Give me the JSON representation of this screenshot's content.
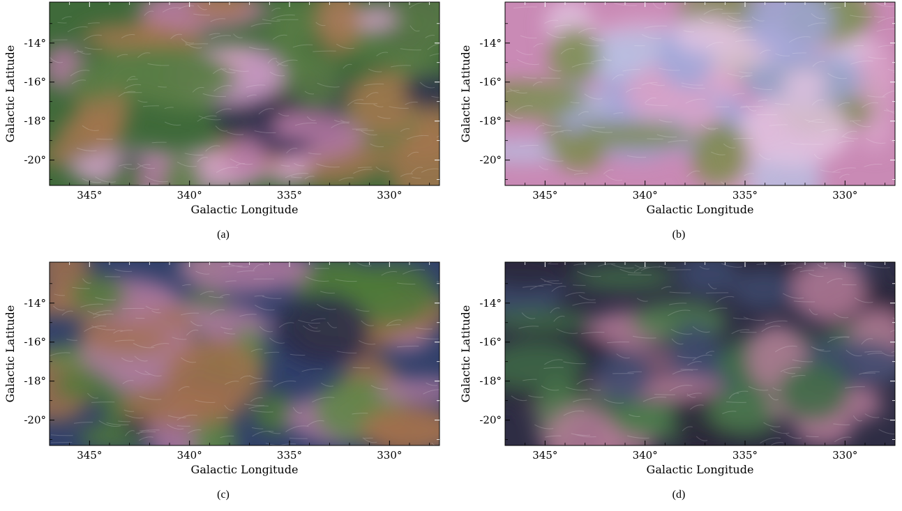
{
  "panels": [
    {
      "id": "a",
      "caption": "(a)",
      "xlabel": "Galactic Longitude",
      "ylabel": "Galactic Latitude",
      "colors": [
        "#3f6a3a",
        "#5a7d45",
        "#a4764f",
        "#b77aa6",
        "#d9a6d0",
        "#2b2d4e"
      ]
    },
    {
      "id": "b",
      "caption": "(b)",
      "xlabel": "Galactic Longitude",
      "ylabel": "Galactic Latitude",
      "colors": [
        "#c98ab5",
        "#d8a2c8",
        "#b9bde0",
        "#7b8a4a",
        "#e2c3e0",
        "#9fa6d8"
      ]
    },
    {
      "id": "c",
      "caption": "(c)",
      "xlabel": "Galactic Longitude",
      "ylabel": "Galactic Latitude",
      "colors": [
        "#31406a",
        "#4f7a3a",
        "#2c2a4a",
        "#b07aa0",
        "#5e8846",
        "#a1704e"
      ]
    },
    {
      "id": "d",
      "caption": "(d)",
      "xlabel": "Galactic Longitude",
      "ylabel": "Galactic Latitude",
      "colors": [
        "#2e2d44",
        "#3d4a6e",
        "#3f6c47",
        "#2a263a",
        "#b57b98",
        "#4d7c4c"
      ]
    }
  ],
  "chart_data": {
    "type": "heatmap",
    "x_ticks": [
      "345°",
      "340°",
      "335°",
      "330°"
    ],
    "y_ticks": [
      "-14°",
      "-16°",
      "-18°",
      "-20°"
    ],
    "x_tick_values": [
      345,
      340,
      335,
      330
    ],
    "y_tick_values": [
      -14,
      -16,
      -18,
      -20
    ],
    "xlim": [
      347,
      327.5
    ],
    "ylim": [
      -21.3,
      -11.9
    ]
  }
}
